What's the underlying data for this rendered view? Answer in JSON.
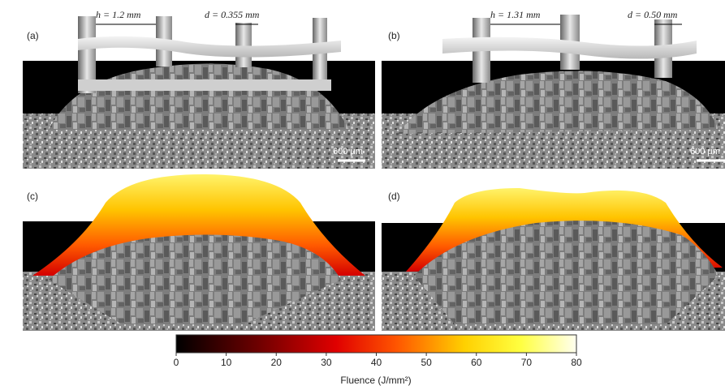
{
  "panels": [
    {
      "label": "(a)",
      "annotations": [
        "h = 1.2 mm",
        "d = 0.355 mm"
      ],
      "scale_bar": "600 μm"
    },
    {
      "label": "(b)",
      "annotations": [
        "h = 1.31 mm",
        "d = 0.50 mm"
      ],
      "scale_bar": "600 μm"
    },
    {
      "label": "(c)"
    },
    {
      "label": "(d)"
    }
  ],
  "colorbar": {
    "label": "Fluence (J/mm²)",
    "lim": [
      0,
      80
    ],
    "ticks": [
      0,
      10,
      20,
      30,
      40,
      50,
      60,
      70,
      80
    ]
  }
}
